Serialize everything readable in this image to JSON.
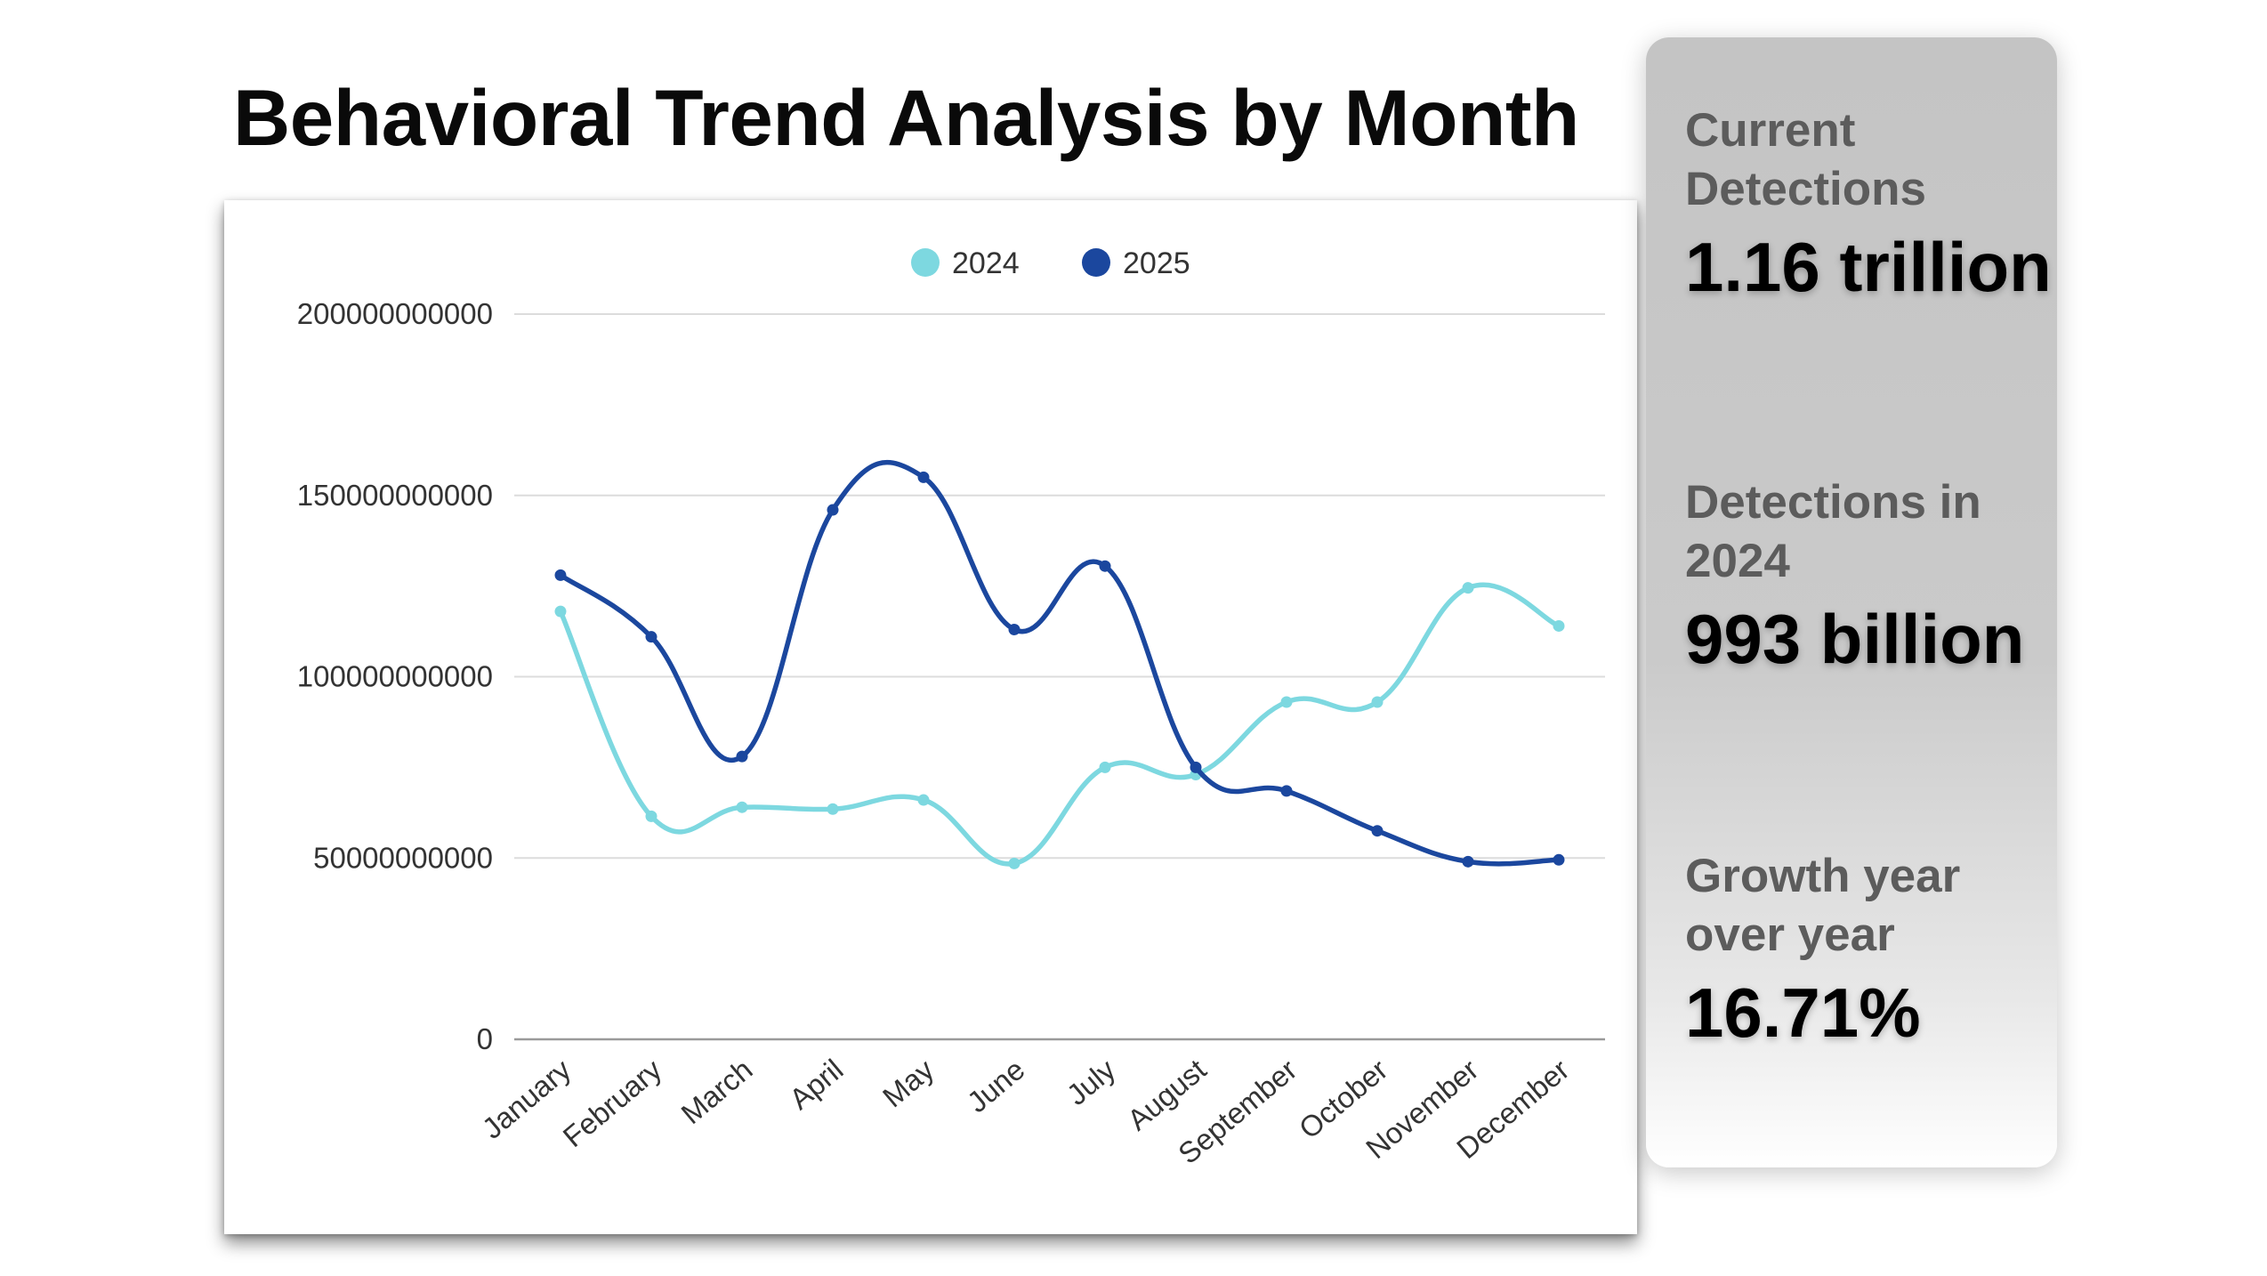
{
  "page": {
    "title": "Behavioral Trend Analysis by Month"
  },
  "stats": [
    {
      "label": "Current Detections",
      "value": "1.16 trillion"
    },
    {
      "label": "Detections in 2024",
      "value": "993 billion"
    },
    {
      "label": "Growth year over year",
      "value": "16.71%"
    }
  ],
  "chart_data": {
    "type": "line",
    "title": "",
    "xlabel": "",
    "ylabel": "",
    "categories": [
      "January",
      "February",
      "March",
      "April",
      "May",
      "June",
      "July",
      "August",
      "September",
      "October",
      "November",
      "December"
    ],
    "series": [
      {
        "name": "2024",
        "color": "#7dd8e0",
        "values": [
          118000000000,
          61500000000,
          64000000000,
          63500000000,
          66000000000,
          48500000000,
          75000000000,
          73000000000,
          93000000000,
          93000000000,
          124500000000,
          114000000000
        ]
      },
      {
        "name": "2025",
        "color": "#1b479e",
        "values": [
          128000000000,
          111000000000,
          78000000000,
          146000000000,
          155000000000,
          113000000000,
          130500000000,
          75000000000,
          68500000000,
          57500000000,
          49000000000,
          49500000000
        ]
      }
    ],
    "ylim": [
      0,
      200000000000
    ],
    "yticks": [
      "0",
      "50000000000",
      "100000000000",
      "150000000000",
      "200000000000"
    ],
    "yticks_values": [
      0,
      50000000000,
      100000000000,
      150000000000,
      200000000000
    ],
    "grid": true,
    "legend": "top-center",
    "smooth": true
  }
}
